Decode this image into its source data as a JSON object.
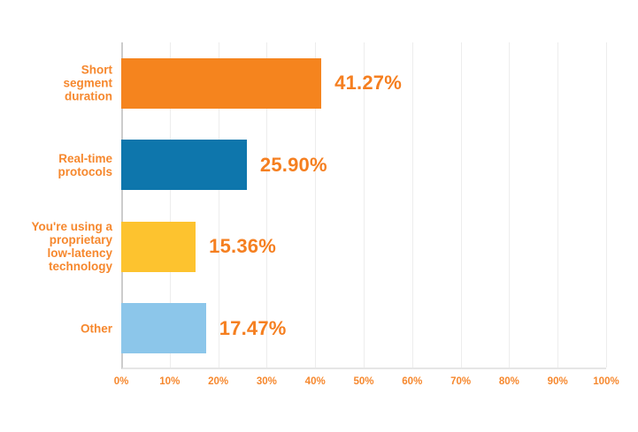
{
  "chart_data": {
    "type": "bar",
    "orientation": "horizontal",
    "title": "",
    "xlabel": "",
    "ylabel": "",
    "categories": [
      "Short segment duration",
      "Real-time protocols",
      "You're using a proprietary low-latency technology",
      "Other"
    ],
    "category_lines": [
      [
        "Short",
        "segment",
        "duration"
      ],
      [
        "Real-time",
        "protocols"
      ],
      [
        "You're using a",
        "proprietary",
        "low-latency",
        "technology"
      ],
      [
        "Other"
      ]
    ],
    "values": [
      41.27,
      25.9,
      15.36,
      17.47
    ],
    "value_labels": [
      "41.27%",
      "25.90%",
      "15.36%",
      "17.47%"
    ],
    "bar_colors": [
      "#f5841e",
      "#0e76ac",
      "#fdc32f",
      "#8cc6ea"
    ],
    "xlim": [
      0,
      100
    ],
    "x_ticks": [
      "0%",
      "10%",
      "20%",
      "30%",
      "40%",
      "50%",
      "60%",
      "70%",
      "80%",
      "90%",
      "100%"
    ],
    "grid": true,
    "legend": false,
    "colors": {
      "category_label": "#f6882e",
      "value_label": "#f57f20",
      "tick_label": "#f6882e",
      "gridline": "#ededed",
      "axis_line": "#cccccc",
      "background": "#ffffff"
    }
  }
}
